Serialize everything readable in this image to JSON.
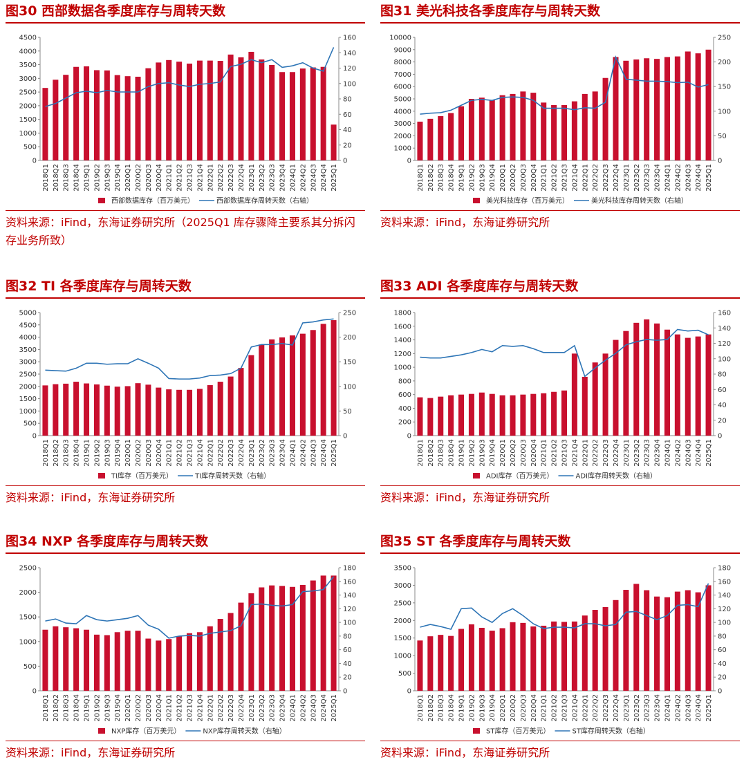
{
  "chart_data": [
    {
      "type": "bar_line",
      "title": "图30  西部数据各季度库存与周转天数",
      "source": "资料来源：iFind，东海证券研究所（2025Q1 库存骤降主要系其分拆闪存业务所致）",
      "categories": [
        "2018Q1",
        "2018Q2",
        "2018Q3",
        "2018Q4",
        "2019Q1",
        "2019Q2",
        "2019Q3",
        "2019Q4",
        "2020Q1",
        "2020Q2",
        "2020Q3",
        "2020Q4",
        "2021Q1",
        "2021Q2",
        "2021Q3",
        "2021Q4",
        "2022Q1",
        "2022Q2",
        "2022Q3",
        "2022Q4",
        "2023Q1",
        "2023Q2",
        "2023Q3",
        "2023Q4",
        "2024Q1",
        "2024Q2",
        "2024Q3",
        "2024Q4",
        "2025Q1"
      ],
      "series": [
        {
          "name": "西部数据库存（百万美元）",
          "color": "#c8102e",
          "values": [
            2650,
            2950,
            3130,
            3420,
            3440,
            3300,
            3290,
            3120,
            3080,
            3060,
            3370,
            3580,
            3670,
            3610,
            3540,
            3650,
            3650,
            3640,
            3870,
            3770,
            3970,
            3690,
            3490,
            3230,
            3230,
            3360,
            3400,
            3420,
            1310
          ]
        },
        {
          "name": "西部数据库存周转天数（右轴）",
          "color": "#2e75b6",
          "axis": "y2",
          "values": [
            70,
            74,
            81,
            88,
            90,
            88,
            91,
            89,
            89,
            89,
            96,
            100,
            101,
            98,
            96,
            99,
            100,
            102,
            122,
            125,
            131,
            127,
            131,
            121,
            123,
            127,
            120,
            116,
            147
          ]
        }
      ],
      "ylim": [
        0,
        4500
      ],
      "yticks": [
        0,
        500,
        1000,
        1500,
        2000,
        2500,
        3000,
        3500,
        4000,
        4500
      ],
      "y2lim": [
        0,
        160
      ],
      "y2ticks": [
        0,
        20,
        40,
        60,
        80,
        100,
        120,
        140,
        160
      ]
    },
    {
      "type": "bar_line",
      "title": "图31  美光科技各季度库存与周转天数",
      "source": "资料来源：iFind，东海证券研究所",
      "categories": [
        "2018Q1",
        "2018Q2",
        "2018Q3",
        "2018Q4",
        "2019Q1",
        "2019Q2",
        "2019Q3",
        "2019Q4",
        "2020Q1",
        "2020Q2",
        "2020Q3",
        "2020Q4",
        "2021Q1",
        "2021Q2",
        "2021Q3",
        "2021Q4",
        "2022Q1",
        "2022Q2",
        "2022Q3",
        "2022Q4",
        "2023Q1",
        "2023Q2",
        "2023Q3",
        "2023Q4",
        "2024Q1",
        "2024Q2",
        "2024Q3",
        "2024Q4",
        "2025Q1"
      ],
      "series": [
        {
          "name": "美光科技库存（百万美元）",
          "color": "#c8102e",
          "values": [
            3150,
            3380,
            3600,
            3850,
            4400,
            5000,
            5100,
            4900,
            5300,
            5400,
            5600,
            5500,
            4700,
            4500,
            4500,
            4800,
            5400,
            5600,
            6700,
            8400,
            8100,
            8200,
            8300,
            8250,
            8400,
            8450,
            8850,
            8700,
            9000
          ]
        },
        {
          "name": "美光科技库存周转天数（右轴）",
          "color": "#2e75b6",
          "axis": "y2",
          "values": [
            94,
            96,
            97,
            102,
            112,
            122,
            124,
            122,
            128,
            129,
            128,
            122,
            106,
            106,
            106,
            103,
            107,
            106,
            118,
            210,
            165,
            163,
            161,
            161,
            160,
            158,
            159,
            149,
            154
          ]
        }
      ],
      "ylim": [
        0,
        10000
      ],
      "yticks": [
        0,
        1000,
        2000,
        3000,
        4000,
        5000,
        6000,
        7000,
        8000,
        9000,
        10000
      ],
      "y2lim": [
        0,
        250
      ],
      "y2ticks": [
        0,
        50,
        100,
        150,
        200,
        250
      ]
    },
    {
      "type": "bar_line",
      "title": "图32  TI 各季度库存与周转天数",
      "source": "资料来源：iFind，东海证券研究所",
      "categories": [
        "2018Q1",
        "2018Q2",
        "2018Q3",
        "2018Q4",
        "2019Q1",
        "2019Q2",
        "2019Q3",
        "2019Q4",
        "2020Q1",
        "2020Q2",
        "2020Q3",
        "2020Q4",
        "2021Q1",
        "2021Q2",
        "2021Q3",
        "2021Q4",
        "2022Q1",
        "2022Q2",
        "2022Q3",
        "2022Q4",
        "2023Q1",
        "2023Q2",
        "2023Q3",
        "2023Q4",
        "2024Q1",
        "2024Q2",
        "2024Q3",
        "2024Q4",
        "2025Q1"
      ],
      "series": [
        {
          "name": "TI库存（百万美元）",
          "color": "#c8102e",
          "values": [
            2040,
            2090,
            2110,
            2190,
            2120,
            2080,
            2030,
            1990,
            2010,
            2130,
            2070,
            1950,
            1880,
            1860,
            1860,
            1900,
            2050,
            2190,
            2400,
            2750,
            3270,
            3700,
            3910,
            3990,
            4070,
            4140,
            4290,
            4540,
            4690
          ]
        },
        {
          "name": "TI库存周转天数（右轴）",
          "color": "#2e75b6",
          "axis": "y2",
          "values": [
            133,
            132,
            131,
            137,
            147,
            147,
            145,
            146,
            146,
            156,
            147,
            137,
            116,
            115,
            115,
            117,
            122,
            123,
            126,
            137,
            180,
            185,
            185,
            187,
            184,
            229,
            231,
            235,
            237
          ]
        }
      ],
      "ylim": [
        0,
        5000
      ],
      "yticks": [
        0,
        500,
        1000,
        1500,
        2000,
        2500,
        3000,
        3500,
        4000,
        4500,
        5000
      ],
      "y2lim": [
        0,
        250
      ],
      "y2ticks": [
        0,
        50,
        100,
        150,
        200,
        250
      ]
    },
    {
      "type": "bar_line",
      "title": "图33  ADI 各季度库存与周转天数",
      "source": "资料来源：iFind，东海证券研究所",
      "categories": [
        "2018Q1",
        "2018Q2",
        "2018Q3",
        "2018Q4",
        "2019Q1",
        "2019Q2",
        "2019Q3",
        "2019Q4",
        "2020Q1",
        "2020Q2",
        "2020Q3",
        "2020Q4",
        "2021Q1",
        "2021Q2",
        "2021Q3",
        "2021Q4",
        "2022Q1",
        "2022Q2",
        "2022Q3",
        "2022Q4",
        "2023Q1",
        "2023Q2",
        "2023Q3",
        "2023Q4",
        "2024Q1",
        "2024Q2",
        "2024Q3",
        "2024Q4",
        "2025Q1"
      ],
      "series": [
        {
          "name": "ADI库存（百万美元）",
          "color": "#c8102e",
          "values": [
            560,
            550,
            570,
            590,
            600,
            610,
            630,
            610,
            590,
            590,
            600,
            610,
            620,
            640,
            660,
            1200,
            860,
            1070,
            1200,
            1400,
            1530,
            1650,
            1700,
            1640,
            1550,
            1480,
            1430,
            1450,
            1480
          ]
        },
        {
          "name": "ADI库存周转天数（右轴）",
          "color": "#2e75b6",
          "axis": "y2",
          "values": [
            102,
            101,
            101,
            103,
            105,
            108,
            112,
            109,
            117,
            116,
            117,
            113,
            108,
            108,
            108,
            117,
            77,
            88,
            98,
            107,
            118,
            122,
            125,
            124,
            125,
            138,
            136,
            137,
            131
          ]
        }
      ],
      "ylim": [
        0,
        1800
      ],
      "yticks": [
        0,
        200,
        400,
        600,
        800,
        1000,
        1200,
        1400,
        1600,
        1800
      ],
      "y2lim": [
        0,
        160
      ],
      "y2ticks": [
        0,
        20,
        40,
        60,
        80,
        100,
        120,
        140,
        160
      ]
    },
    {
      "type": "bar_line",
      "title": "图34  NXP 各季度库存与周转天数",
      "source": "资料来源：iFind，东海证券研究所",
      "categories": [
        "2018Q1",
        "2018Q2",
        "2018Q3",
        "2018Q4",
        "2019Q1",
        "2019Q2",
        "2019Q3",
        "2019Q4",
        "2020Q1",
        "2020Q2",
        "2020Q3",
        "2020Q4",
        "2021Q1",
        "2021Q2",
        "2021Q3",
        "2021Q4",
        "2022Q1",
        "2022Q2",
        "2022Q3",
        "2022Q4",
        "2023Q1",
        "2023Q2",
        "2023Q3",
        "2023Q4",
        "2024Q1",
        "2024Q2",
        "2024Q3",
        "2024Q4",
        "2025Q1"
      ],
      "series": [
        {
          "name": "NXP库存（百万美元）",
          "color": "#c8102e",
          "values": [
            1240,
            1310,
            1290,
            1270,
            1240,
            1140,
            1130,
            1190,
            1220,
            1220,
            1060,
            1020,
            1050,
            1110,
            1170,
            1190,
            1310,
            1460,
            1580,
            1790,
            1980,
            2100,
            2140,
            2130,
            2110,
            2150,
            2240,
            2340,
            2340
          ]
        },
        {
          "name": "NXP库存周转天数（右轴）",
          "color": "#2e75b6",
          "axis": "y2",
          "values": [
            102,
            105,
            99,
            98,
            110,
            104,
            102,
            104,
            106,
            110,
            96,
            90,
            77,
            80,
            81,
            80,
            84,
            86,
            88,
            95,
            126,
            127,
            125,
            124,
            126,
            145,
            146,
            148,
            167
          ]
        }
      ],
      "ylim": [
        0,
        2500
      ],
      "yticks": [
        0,
        500,
        1000,
        1500,
        2000,
        2500
      ],
      "y2lim": [
        0,
        180
      ],
      "y2ticks": [
        0,
        20,
        40,
        60,
        80,
        100,
        120,
        140,
        160,
        180
      ]
    },
    {
      "type": "bar_line",
      "title": "图35  ST 各季度库存与周转天数",
      "source": "资料来源：iFind，东海证券研究所",
      "categories": [
        "2018Q1",
        "2018Q2",
        "2018Q3",
        "2018Q4",
        "2019Q1",
        "2019Q2",
        "2019Q3",
        "2019Q4",
        "2020Q1",
        "2020Q2",
        "2020Q3",
        "2020Q4",
        "2021Q1",
        "2021Q2",
        "2021Q3",
        "2021Q4",
        "2022Q1",
        "2022Q2",
        "2022Q3",
        "2022Q4",
        "2023Q1",
        "2023Q2",
        "2023Q3",
        "2023Q4",
        "2024Q1",
        "2024Q2",
        "2024Q3",
        "2024Q4",
        "2025Q1"
      ],
      "series": [
        {
          "name": "ST库存（百万美元）",
          "color": "#c8102e",
          "values": [
            1430,
            1550,
            1590,
            1560,
            1760,
            1890,
            1790,
            1710,
            1780,
            1950,
            1930,
            1830,
            1850,
            1970,
            1960,
            1970,
            2140,
            2300,
            2380,
            2580,
            2870,
            3040,
            2860,
            2680,
            2660,
            2820,
            2860,
            2800,
            3000
          ]
        },
        {
          "name": "ST库存周转天数（右轴）",
          "color": "#2e75b6",
          "axis": "y2",
          "values": [
            93,
            97,
            94,
            90,
            120,
            121,
            108,
            100,
            113,
            120,
            110,
            98,
            91,
            93,
            93,
            92,
            98,
            98,
            95,
            97,
            115,
            116,
            110,
            104,
            110,
            125,
            126,
            123,
            157
          ]
        }
      ],
      "ylim": [
        0,
        3500
      ],
      "yticks": [
        0,
        500,
        1000,
        1500,
        2000,
        2500,
        3000,
        3500
      ],
      "y2lim": [
        0,
        180
      ],
      "y2ticks": [
        0,
        20,
        40,
        60,
        80,
        100,
        120,
        140,
        160,
        180
      ]
    }
  ]
}
